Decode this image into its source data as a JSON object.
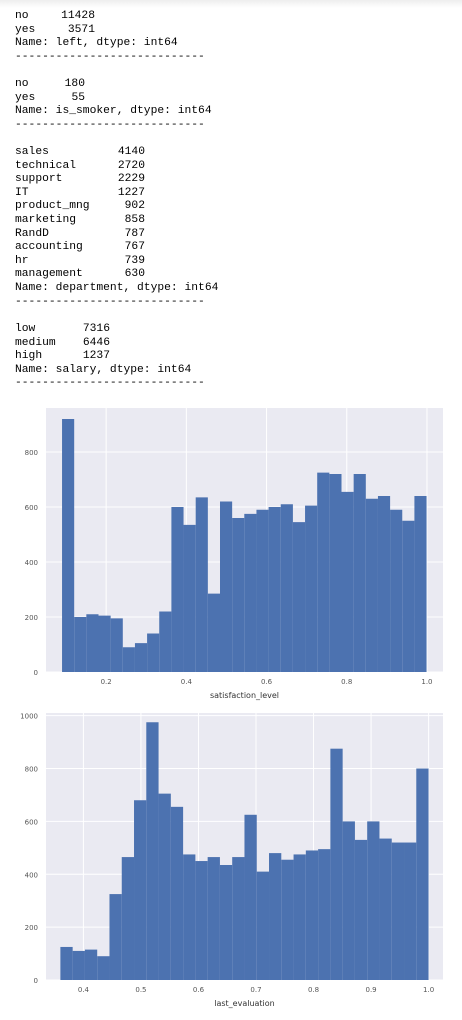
{
  "outputs": [
    {
      "rows": [
        [
          "no",
          "11428"
        ],
        [
          "yes",
          "3571"
        ]
      ],
      "name_line": "Name: left, dtype: int64",
      "separator": "----------------------------"
    },
    {
      "rows": [
        [
          "no",
          "180"
        ],
        [
          "yes",
          "55"
        ]
      ],
      "name_line": "Name: is_smoker, dtype: int64",
      "separator": "----------------------------"
    },
    {
      "rows": [
        [
          "sales",
          "4140"
        ],
        [
          "technical",
          "2720"
        ],
        [
          "support",
          "2229"
        ],
        [
          "IT",
          "1227"
        ],
        [
          "product_mng",
          "902"
        ],
        [
          "marketing",
          "858"
        ],
        [
          "RandD",
          "787"
        ],
        [
          "accounting",
          "767"
        ],
        [
          "hr",
          "739"
        ],
        [
          "management",
          "630"
        ]
      ],
      "name_line": "Name: department, dtype: int64",
      "separator": "----------------------------"
    },
    {
      "rows": [
        [
          "low",
          "7316"
        ],
        [
          "medium",
          "6446"
        ],
        [
          "high",
          "1237"
        ]
      ],
      "name_line": "Name: salary, dtype: int64",
      "separator": "----------------------------"
    }
  ],
  "colors": {
    "bar": "#4C72B0",
    "plot_bg": "#EAEAF2",
    "grid": "#FFFFFF",
    "tick_text": "#555555"
  },
  "chart_data": [
    {
      "type": "bar",
      "title": "",
      "xlabel": "satisfaction_level",
      "ylabel": "",
      "xlim": [
        0.05,
        1.04
      ],
      "ylim": [
        0,
        960
      ],
      "xticks": [
        0.2,
        0.4,
        0.6,
        0.8,
        1.0
      ],
      "xtick_labels": [
        "0.2",
        "0.4",
        "0.6",
        "0.8",
        "1.0"
      ],
      "yticks": [
        0,
        200,
        400,
        600,
        800
      ],
      "ytick_labels": [
        "0",
        "200",
        "400",
        "600",
        "800"
      ],
      "grid": true,
      "bin_start": 0.09,
      "bin_width": 0.0303,
      "values": [
        920,
        200,
        210,
        205,
        195,
        90,
        105,
        140,
        220,
        600,
        535,
        635,
        285,
        620,
        560,
        575,
        590,
        600,
        610,
        545,
        605,
        725,
        720,
        655,
        720,
        630,
        640,
        590,
        550,
        640
      ]
    },
    {
      "type": "bar",
      "title": "",
      "xlabel": "last_evaluation",
      "ylabel": "",
      "xlim": [
        0.335,
        1.025
      ],
      "ylim": [
        0,
        1010
      ],
      "xticks": [
        0.4,
        0.5,
        0.6,
        0.7,
        0.8,
        0.9,
        1.0
      ],
      "xtick_labels": [
        "0.4",
        "0.5",
        "0.6",
        "0.7",
        "0.8",
        "0.9",
        "1.0"
      ],
      "yticks": [
        0,
        200,
        400,
        600,
        800,
        1000
      ],
      "ytick_labels": [
        "0",
        "200",
        "400",
        "600",
        "800",
        "1000"
      ],
      "grid": true,
      "bin_start": 0.36,
      "bin_width": 0.02133,
      "values": [
        125,
        110,
        115,
        90,
        325,
        465,
        680,
        975,
        705,
        655,
        475,
        450,
        465,
        435,
        465,
        625,
        410,
        480,
        455,
        475,
        490,
        495,
        875,
        600,
        530,
        600,
        535,
        520,
        520,
        800
      ]
    }
  ]
}
